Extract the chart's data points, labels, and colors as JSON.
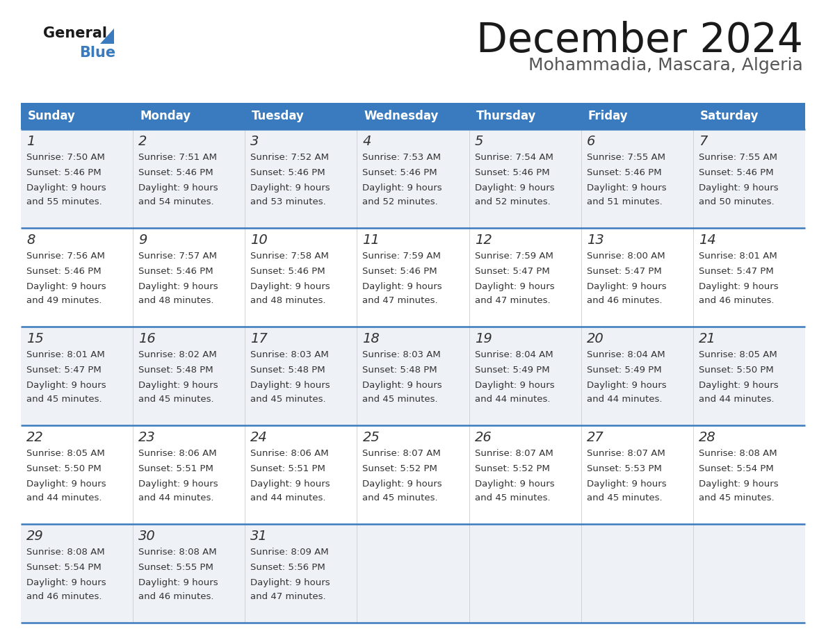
{
  "title": "December 2024",
  "subtitle": "Mohammadia, Mascara, Algeria",
  "header_bg": "#3a7bbf",
  "header_text": "#ffffff",
  "row_bg_odd": "#eef2f7",
  "row_bg_even": "#ffffff",
  "separator_color": "#3a7bbf",
  "text_color": "#333333",
  "day_names": [
    "Sunday",
    "Monday",
    "Tuesday",
    "Wednesday",
    "Thursday",
    "Friday",
    "Saturday"
  ],
  "weeks": [
    [
      {
        "day": 1,
        "sunrise": "7:50 AM",
        "sunset": "5:46 PM",
        "daylight": "9 hours\nand 55 minutes."
      },
      {
        "day": 2,
        "sunrise": "7:51 AM",
        "sunset": "5:46 PM",
        "daylight": "9 hours\nand 54 minutes."
      },
      {
        "day": 3,
        "sunrise": "7:52 AM",
        "sunset": "5:46 PM",
        "daylight": "9 hours\nand 53 minutes."
      },
      {
        "day": 4,
        "sunrise": "7:53 AM",
        "sunset": "5:46 PM",
        "daylight": "9 hours\nand 52 minutes."
      },
      {
        "day": 5,
        "sunrise": "7:54 AM",
        "sunset": "5:46 PM",
        "daylight": "9 hours\nand 52 minutes."
      },
      {
        "day": 6,
        "sunrise": "7:55 AM",
        "sunset": "5:46 PM",
        "daylight": "9 hours\nand 51 minutes."
      },
      {
        "day": 7,
        "sunrise": "7:55 AM",
        "sunset": "5:46 PM",
        "daylight": "9 hours\nand 50 minutes."
      }
    ],
    [
      {
        "day": 8,
        "sunrise": "7:56 AM",
        "sunset": "5:46 PM",
        "daylight": "9 hours\nand 49 minutes."
      },
      {
        "day": 9,
        "sunrise": "7:57 AM",
        "sunset": "5:46 PM",
        "daylight": "9 hours\nand 48 minutes."
      },
      {
        "day": 10,
        "sunrise": "7:58 AM",
        "sunset": "5:46 PM",
        "daylight": "9 hours\nand 48 minutes."
      },
      {
        "day": 11,
        "sunrise": "7:59 AM",
        "sunset": "5:46 PM",
        "daylight": "9 hours\nand 47 minutes."
      },
      {
        "day": 12,
        "sunrise": "7:59 AM",
        "sunset": "5:47 PM",
        "daylight": "9 hours\nand 47 minutes."
      },
      {
        "day": 13,
        "sunrise": "8:00 AM",
        "sunset": "5:47 PM",
        "daylight": "9 hours\nand 46 minutes."
      },
      {
        "day": 14,
        "sunrise": "8:01 AM",
        "sunset": "5:47 PM",
        "daylight": "9 hours\nand 46 minutes."
      }
    ],
    [
      {
        "day": 15,
        "sunrise": "8:01 AM",
        "sunset": "5:47 PM",
        "daylight": "9 hours\nand 45 minutes."
      },
      {
        "day": 16,
        "sunrise": "8:02 AM",
        "sunset": "5:48 PM",
        "daylight": "9 hours\nand 45 minutes."
      },
      {
        "day": 17,
        "sunrise": "8:03 AM",
        "sunset": "5:48 PM",
        "daylight": "9 hours\nand 45 minutes."
      },
      {
        "day": 18,
        "sunrise": "8:03 AM",
        "sunset": "5:48 PM",
        "daylight": "9 hours\nand 45 minutes."
      },
      {
        "day": 19,
        "sunrise": "8:04 AM",
        "sunset": "5:49 PM",
        "daylight": "9 hours\nand 44 minutes."
      },
      {
        "day": 20,
        "sunrise": "8:04 AM",
        "sunset": "5:49 PM",
        "daylight": "9 hours\nand 44 minutes."
      },
      {
        "day": 21,
        "sunrise": "8:05 AM",
        "sunset": "5:50 PM",
        "daylight": "9 hours\nand 44 minutes."
      }
    ],
    [
      {
        "day": 22,
        "sunrise": "8:05 AM",
        "sunset": "5:50 PM",
        "daylight": "9 hours\nand 44 minutes."
      },
      {
        "day": 23,
        "sunrise": "8:06 AM",
        "sunset": "5:51 PM",
        "daylight": "9 hours\nand 44 minutes."
      },
      {
        "day": 24,
        "sunrise": "8:06 AM",
        "sunset": "5:51 PM",
        "daylight": "9 hours\nand 44 minutes."
      },
      {
        "day": 25,
        "sunrise": "8:07 AM",
        "sunset": "5:52 PM",
        "daylight": "9 hours\nand 45 minutes."
      },
      {
        "day": 26,
        "sunrise": "8:07 AM",
        "sunset": "5:52 PM",
        "daylight": "9 hours\nand 45 minutes."
      },
      {
        "day": 27,
        "sunrise": "8:07 AM",
        "sunset": "5:53 PM",
        "daylight": "9 hours\nand 45 minutes."
      },
      {
        "day": 28,
        "sunrise": "8:08 AM",
        "sunset": "5:54 PM",
        "daylight": "9 hours\nand 45 minutes."
      }
    ],
    [
      {
        "day": 29,
        "sunrise": "8:08 AM",
        "sunset": "5:54 PM",
        "daylight": "9 hours\nand 46 minutes."
      },
      {
        "day": 30,
        "sunrise": "8:08 AM",
        "sunset": "5:55 PM",
        "daylight": "9 hours\nand 46 minutes."
      },
      {
        "day": 31,
        "sunrise": "8:09 AM",
        "sunset": "5:56 PM",
        "daylight": "9 hours\nand 47 minutes."
      },
      null,
      null,
      null,
      null
    ]
  ]
}
